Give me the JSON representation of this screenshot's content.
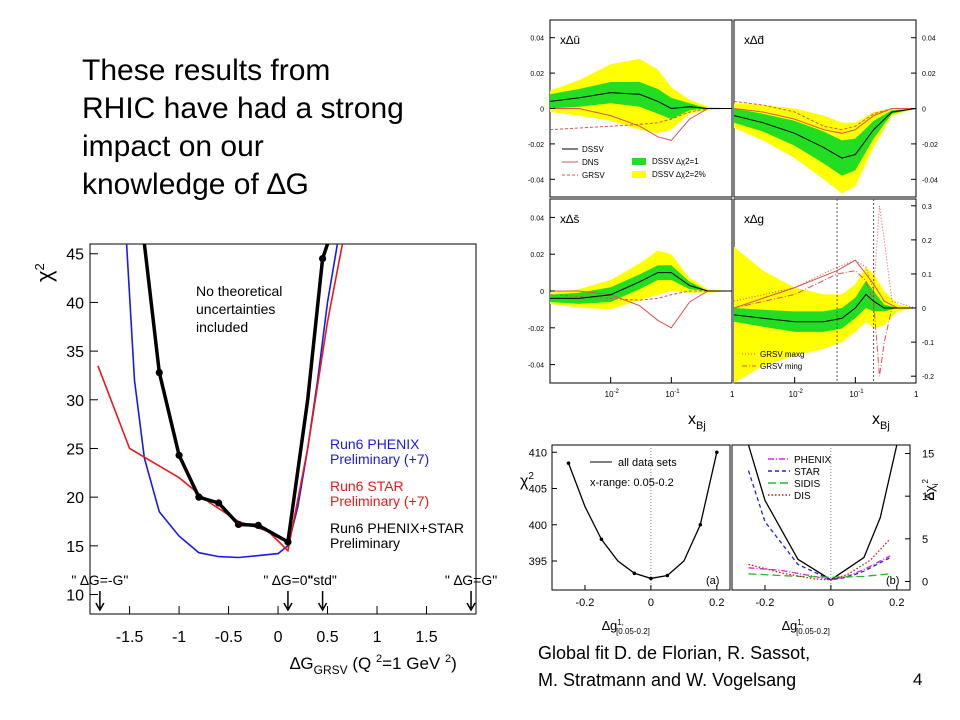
{
  "slide": {
    "heading_lines": [
      "These results from",
      "RHIC have had a strong",
      "impact on our",
      "knowledge of ∆G"
    ],
    "caption_lines": [
      "Global fit D. de Florian, R. Sassot,",
      "M. Stratmann and W. Vogelsang"
    ],
    "page_number": "4"
  },
  "chart_data": [
    {
      "type": "line",
      "panel": "main-chi2",
      "ylabel": "χ2",
      "xlabel": "∆GGRSV (Q 2=1 GeV 2)",
      "xlabel_parts": {
        "main": "∆G",
        "sub": "GRSV",
        "paren": "(Q ",
        "sup1": "2",
        "mid": "=1 GeV ",
        "sup2": "2",
        "close": ")"
      },
      "xlim": [
        -1.9,
        2.0
      ],
      "ylim": [
        8,
        46
      ],
      "x_ticks": [
        "-1.5",
        "-1",
        "-0.5",
        "0",
        "0.5",
        "1",
        "1.5"
      ],
      "x_tick_values": [
        -1.5,
        -1,
        -0.5,
        0,
        0.5,
        1,
        1.5
      ],
      "y_ticks": [
        "10",
        "15",
        "20",
        "25",
        "30",
        "35",
        "40",
        "45"
      ],
      "y_tick_values": [
        10,
        15,
        20,
        25,
        30,
        35,
        40,
        45
      ],
      "annotation": [
        "No theoretical",
        "uncertainties",
        "included"
      ],
      "markers": [
        {
          "label": "\" ∆G=-G\"",
          "x": -1.8
        },
        {
          "label": "\" ∆G=0\"",
          "x": 0.1
        },
        {
          "label": "\"std\"",
          "x": 0.45
        },
        {
          "label": "\" ∆G=G\"",
          "x": 1.95
        }
      ],
      "series": [
        {
          "name": "Run6 PHENIX Preliminary (+7)",
          "legend": [
            "Run6 PHENIX",
            "Preliminary (+7)"
          ],
          "color": "#1a1ae6",
          "x": [
            -1.53,
            -1.45,
            -1.35,
            -1.2,
            -1.0,
            -0.8,
            -0.6,
            -0.4,
            -0.2,
            0.0,
            0.1,
            0.2,
            0.3,
            0.4,
            0.5,
            0.6
          ],
          "y": [
            46,
            32,
            24,
            18.5,
            16.0,
            14.3,
            13.9,
            13.8,
            14.0,
            14.2,
            15.0,
            19.0,
            25.0,
            32.0,
            40.0,
            46.0
          ]
        },
        {
          "name": "Run6 STAR Preliminary (+7)",
          "legend": [
            "Run6 STAR",
            "Preliminary (+7)"
          ],
          "color": "#e61a1a",
          "x": [
            -1.82,
            -1.5,
            -1.0,
            -0.7,
            -0.4,
            -0.1,
            0.1,
            0.3,
            0.5,
            0.65
          ],
          "y": [
            33.5,
            25.0,
            22.0,
            19.5,
            17.5,
            16.5,
            14.5,
            25.0,
            38.0,
            46.0
          ]
        },
        {
          "name": "Run6 PHENIX+STAR Preliminary",
          "legend": [
            "Run6 PHENIX+STAR",
            "Preliminary"
          ],
          "color": "#000000",
          "x": [
            -1.35,
            -1.2,
            -1.0,
            -0.8,
            -0.6,
            -0.4,
            -0.2,
            0.1,
            0.3,
            0.45,
            0.5
          ],
          "y": [
            46,
            32.8,
            24.3,
            20.0,
            19.4,
            17.2,
            17.1,
            15.4,
            30.0,
            44.5,
            46.0
          ],
          "points_x": [
            -1.2,
            -1.0,
            -0.8,
            -0.6,
            -0.4,
            -0.2,
            0.1,
            0.45
          ],
          "points_y": [
            32.8,
            24.3,
            20.0,
            19.4,
            17.2,
            17.1,
            15.4,
            44.5
          ]
        }
      ]
    },
    {
      "type": "area",
      "panel": "x-delta-ubar",
      "label": "x∆ū",
      "xlim": [
        0.001,
        1
      ],
      "log_x": true,
      "ylim": [
        -0.05,
        0.05
      ],
      "y_ticks": [
        "0.04",
        "0.02",
        "0",
        "-0.02",
        "-0.04"
      ],
      "y_tick_values": [
        0.04,
        0.02,
        0,
        -0.02,
        -0.04
      ],
      "x": [
        0.001,
        0.003,
        0.01,
        0.03,
        0.06,
        0.1,
        0.2,
        0.4,
        1
      ],
      "central": [
        0.004,
        0.006,
        0.009,
        0.008,
        0.004,
        0.0,
        0.001,
        0.0,
        0.0
      ],
      "band1": [
        0.004,
        0.005,
        0.006,
        0.007,
        0.007,
        0.006,
        0.002,
        0.0,
        0.0
      ],
      "band2": [
        0.006,
        0.01,
        0.016,
        0.02,
        0.018,
        0.012,
        0.004,
        0.001,
        0.0
      ],
      "curves": [
        {
          "name": "DNS",
          "x": [
            0.001,
            0.003,
            0.01,
            0.03,
            0.06,
            0.1,
            0.2,
            0.4,
            1
          ],
          "y": [
            0.0,
            0.0,
            -0.004,
            -0.01,
            -0.016,
            -0.018,
            -0.006,
            0.0,
            0.0
          ],
          "color": "#e05050",
          "dash": ""
        },
        {
          "name": "GRSV",
          "x": [
            0.001,
            0.003,
            0.01,
            0.03,
            0.06,
            0.1,
            0.2,
            0.4,
            1
          ],
          "y": [
            -0.012,
            -0.011,
            -0.01,
            -0.009,
            -0.008,
            -0.006,
            -0.002,
            0.0,
            0.0
          ],
          "color": "#e05050",
          "dash": "3,2"
        }
      ],
      "legend": [
        {
          "label": "DSSV",
          "kind": "line",
          "color": "#000"
        },
        {
          "label": "DNS",
          "kind": "line",
          "color": "#e05050"
        },
        {
          "label": "GRSV",
          "kind": "dash",
          "color": "#e05050"
        },
        {
          "label": "DSSV ∆χ2=1",
          "kind": "box",
          "color": "#22dd22"
        },
        {
          "label": "DSSV ∆χ2=2%",
          "kind": "box",
          "color": "#ffff00"
        }
      ]
    },
    {
      "type": "area",
      "panel": "x-delta-dbar",
      "label": "x∆d̄",
      "xlim": [
        0.001,
        1
      ],
      "log_x": true,
      "ylim": [
        -0.05,
        0.05
      ],
      "y_ticks": [
        "0.04",
        "0.02",
        "0",
        "-0.02",
        "-0.04"
      ],
      "y_tick_values": [
        0.04,
        0.02,
        0,
        -0.02,
        -0.04
      ],
      "x": [
        0.001,
        0.003,
        0.01,
        0.03,
        0.06,
        0.1,
        0.2,
        0.4,
        1
      ],
      "central": [
        -0.004,
        -0.008,
        -0.014,
        -0.022,
        -0.028,
        -0.026,
        -0.012,
        -0.002,
        0.0
      ],
      "band1": [
        0.004,
        0.005,
        0.007,
        0.009,
        0.01,
        0.009,
        0.005,
        0.001,
        0.0
      ],
      "band2": [
        0.007,
        0.01,
        0.014,
        0.018,
        0.02,
        0.018,
        0.01,
        0.002,
        0.0
      ],
      "curves": [
        {
          "name": "DNS",
          "x": [
            0.001,
            0.003,
            0.01,
            0.03,
            0.06,
            0.1,
            0.2,
            0.4,
            1
          ],
          "y": [
            0.0,
            -0.002,
            -0.006,
            -0.012,
            -0.014,
            -0.012,
            -0.004,
            0.0,
            0.0
          ],
          "color": "#e05050",
          "dash": ""
        },
        {
          "name": "GRSV",
          "x": [
            0.001,
            0.003,
            0.01,
            0.03,
            0.06,
            0.1,
            0.2,
            0.4,
            1
          ],
          "y": [
            0.004,
            0.002,
            -0.002,
            -0.01,
            -0.012,
            -0.01,
            -0.003,
            0.0,
            0.0
          ],
          "color": "#e05050",
          "dash": "3,2"
        }
      ]
    },
    {
      "type": "area",
      "panel": "x-delta-sbar",
      "label": "x∆s̄",
      "xlim": [
        0.001,
        1
      ],
      "log_x": true,
      "ylim": [
        -0.05,
        0.05
      ],
      "y_ticks": [
        "0.04",
        "0.02",
        "0",
        "-0.02",
        "-0.04"
      ],
      "y_tick_values": [
        0.04,
        0.02,
        0,
        -0.02,
        -0.04
      ],
      "x_ticks": [
        "10-2",
        "10-1",
        "1"
      ],
      "x_tick_values": [
        0.01,
        0.1,
        1
      ],
      "xlabel": "xBj",
      "x": [
        0.001,
        0.003,
        0.01,
        0.03,
        0.06,
        0.1,
        0.2,
        0.4,
        1
      ],
      "central": [
        -0.004,
        -0.004,
        -0.002,
        0.005,
        0.01,
        0.01,
        0.003,
        0.0,
        0.0
      ],
      "band1": [
        0.002,
        0.003,
        0.004,
        0.004,
        0.004,
        0.004,
        0.002,
        0.0,
        0.0
      ],
      "band2": [
        0.003,
        0.005,
        0.008,
        0.01,
        0.012,
        0.01,
        0.004,
        0.001,
        0.0
      ],
      "curves": [
        {
          "name": "DNS",
          "x": [
            0.001,
            0.003,
            0.01,
            0.03,
            0.06,
            0.1,
            0.2,
            0.4,
            1
          ],
          "y": [
            0.0,
            0.0,
            -0.002,
            -0.008,
            -0.016,
            -0.02,
            -0.006,
            0.0,
            0.0
          ],
          "color": "#e05050",
          "dash": ""
        },
        {
          "name": "GRSV",
          "x": [
            0.001,
            0.003,
            0.01,
            0.03,
            0.06,
            0.1,
            0.2,
            0.4,
            1
          ],
          "y": [
            -0.002,
            -0.003,
            -0.004,
            -0.005,
            -0.004,
            -0.002,
            0.0,
            0.0,
            0.0
          ],
          "color": "#e05050",
          "dash": "3,2"
        }
      ]
    },
    {
      "type": "area",
      "panel": "x-delta-g",
      "label": "x∆g",
      "xlim": [
        0.001,
        1
      ],
      "log_x": true,
      "ylim": [
        -0.22,
        0.32
      ],
      "y_ticks": [
        "0.3",
        "0.2",
        "0.1",
        "0",
        "-0.1",
        "-0.2"
      ],
      "y_tick_values": [
        0.3,
        0.2,
        0.1,
        0,
        -0.1,
        -0.2
      ],
      "x_ticks": [
        "10-2",
        "10-1",
        "1"
      ],
      "x_tick_values": [
        0.01,
        0.1,
        1
      ],
      "xlabel": "xBj",
      "vlines": [
        0.05,
        0.2
      ],
      "x": [
        0.001,
        0.003,
        0.01,
        0.03,
        0.06,
        0.1,
        0.15,
        0.2,
        0.3,
        0.5,
        1
      ],
      "central": [
        -0.02,
        -0.03,
        -0.04,
        -0.04,
        -0.03,
        0.0,
        0.04,
        0.02,
        0.0,
        0.0,
        0.0
      ],
      "band1": [
        0.02,
        0.025,
        0.03,
        0.03,
        0.03,
        0.03,
        0.04,
        0.03,
        0.01,
        0.0,
        0.0
      ],
      "band2": [
        0.2,
        0.14,
        0.1,
        0.08,
        0.07,
        0.07,
        0.08,
        0.08,
        0.05,
        0.01,
        0.0
      ],
      "curves": [
        {
          "name": "GRSV maxg",
          "x": [
            0.001,
            0.01,
            0.05,
            0.1,
            0.15,
            0.2,
            0.25,
            0.3,
            0.4,
            1
          ],
          "y": [
            0.02,
            0.06,
            0.12,
            0.14,
            0.12,
            0.05,
            0.3,
            0.2,
            0.02,
            0.0
          ],
          "color": "#e05050",
          "dash": "1,2"
        },
        {
          "name": "GRSV ming",
          "x": [
            0.001,
            0.01,
            0.05,
            0.1,
            0.15,
            0.2,
            0.25,
            0.3,
            0.4,
            1
          ],
          "y": [
            0.0,
            0.04,
            0.1,
            0.11,
            0.08,
            0.02,
            -0.2,
            -0.1,
            0.0,
            0.0
          ],
          "color": "#e05050",
          "dash": "6,2,1,2"
        },
        {
          "name": "",
          "x": [
            0.001,
            0.01,
            0.05,
            0.1,
            0.15,
            0.2,
            0.3,
            0.5,
            1
          ],
          "y": [
            0.0,
            0.06,
            0.11,
            0.14,
            0.1,
            0.07,
            0.02,
            0.0,
            0.0
          ],
          "color": "#e05050",
          "dash": ""
        }
      ],
      "legend": [
        {
          "label": "GRSV maxg",
          "kind": "dot",
          "color": "#e05050"
        },
        {
          "label": "GRSV ming",
          "kind": "dashdot",
          "color": "#e05050"
        }
      ]
    },
    {
      "type": "line",
      "panel": "chi2-vs-dg",
      "ylabel": "χ2",
      "xlabel": "∆g1, [0.05-0.2]",
      "xlim": [
        -0.3,
        0.24
      ],
      "ylim": [
        391,
        411
      ],
      "y_ticks": [
        "410",
        "405",
        "400",
        "395"
      ],
      "y_tick_values": [
        410,
        405,
        400,
        395
      ],
      "x_ticks": [
        "-0.2",
        "0",
        "0.2"
      ],
      "x_tick_values": [
        -0.2,
        0,
        0.2
      ],
      "legend": "all data sets",
      "note": "x-range: 0.05-0.2",
      "tag": "(a)",
      "series": [
        {
          "name": "all data sets",
          "color": "#000",
          "x": [
            -0.25,
            -0.2,
            -0.15,
            -0.1,
            -0.05,
            0.0,
            0.05,
            0.1,
            0.15,
            0.2
          ],
          "y": [
            408.5,
            402.5,
            398.0,
            395.0,
            393.3,
            392.6,
            393.0,
            395.0,
            400.0,
            410.0
          ],
          "points_x": [
            -0.25,
            -0.15,
            -0.05,
            0.0,
            0.05,
            0.15,
            0.2
          ],
          "points_y": [
            408.5,
            398.0,
            393.3,
            392.6,
            393.0,
            400.0,
            410.0
          ]
        }
      ]
    },
    {
      "type": "line",
      "panel": "delta-chi2-i",
      "ylabel": "∆χi2",
      "xlabel": "∆g1, [0.05-0.2]",
      "xlim": [
        -0.3,
        0.24
      ],
      "ylim": [
        -1,
        16
      ],
      "y_ticks": [
        "15",
        "10",
        "5",
        "0"
      ],
      "y_tick_values": [
        15,
        10,
        5,
        0
      ],
      "x_ticks": [
        "-0.2",
        "0",
        "0.2"
      ],
      "x_tick_values": [
        -0.2,
        0,
        0.2
      ],
      "tag": "(b)",
      "series": [
        {
          "name": "total",
          "color": "#000",
          "dash": "",
          "x": [
            -0.25,
            -0.2,
            -0.1,
            0.0,
            0.1,
            0.15,
            0.2
          ],
          "y": [
            16,
            9.5,
            2.6,
            0.2,
            2.8,
            7.5,
            16
          ]
        },
        {
          "name": "PHENIX",
          "color": "#dd22dd",
          "dash": "6,2,1,2",
          "x": [
            -0.25,
            -0.15,
            -0.05,
            0.0,
            0.05,
            0.1,
            0.18
          ],
          "y": [
            1.6,
            1.3,
            0.6,
            0.2,
            0.6,
            1.4,
            3.0
          ]
        },
        {
          "name": "STAR",
          "color": "#2222dd",
          "dash": "4,3",
          "x": [
            -0.25,
            -0.2,
            -0.1,
            0.0,
            0.05,
            0.1,
            0.18
          ],
          "y": [
            13.0,
            7.0,
            2.0,
            0.2,
            0.5,
            1.2,
            2.8
          ]
        },
        {
          "name": "SIDIS",
          "color": "#22bb22",
          "dash": "8,4",
          "x": [
            -0.25,
            -0.1,
            0.0,
            0.1,
            0.18
          ],
          "y": [
            0.9,
            0.6,
            0.5,
            0.6,
            0.9
          ]
        },
        {
          "name": "DIS",
          "color": "#dd1111",
          "dash": "1.5,2",
          "x": [
            -0.25,
            -0.15,
            -0.05,
            0.0,
            0.05,
            0.12,
            0.18
          ],
          "y": [
            2.0,
            1.0,
            0.3,
            0.2,
            0.8,
            2.5,
            5.0
          ]
        }
      ]
    }
  ]
}
